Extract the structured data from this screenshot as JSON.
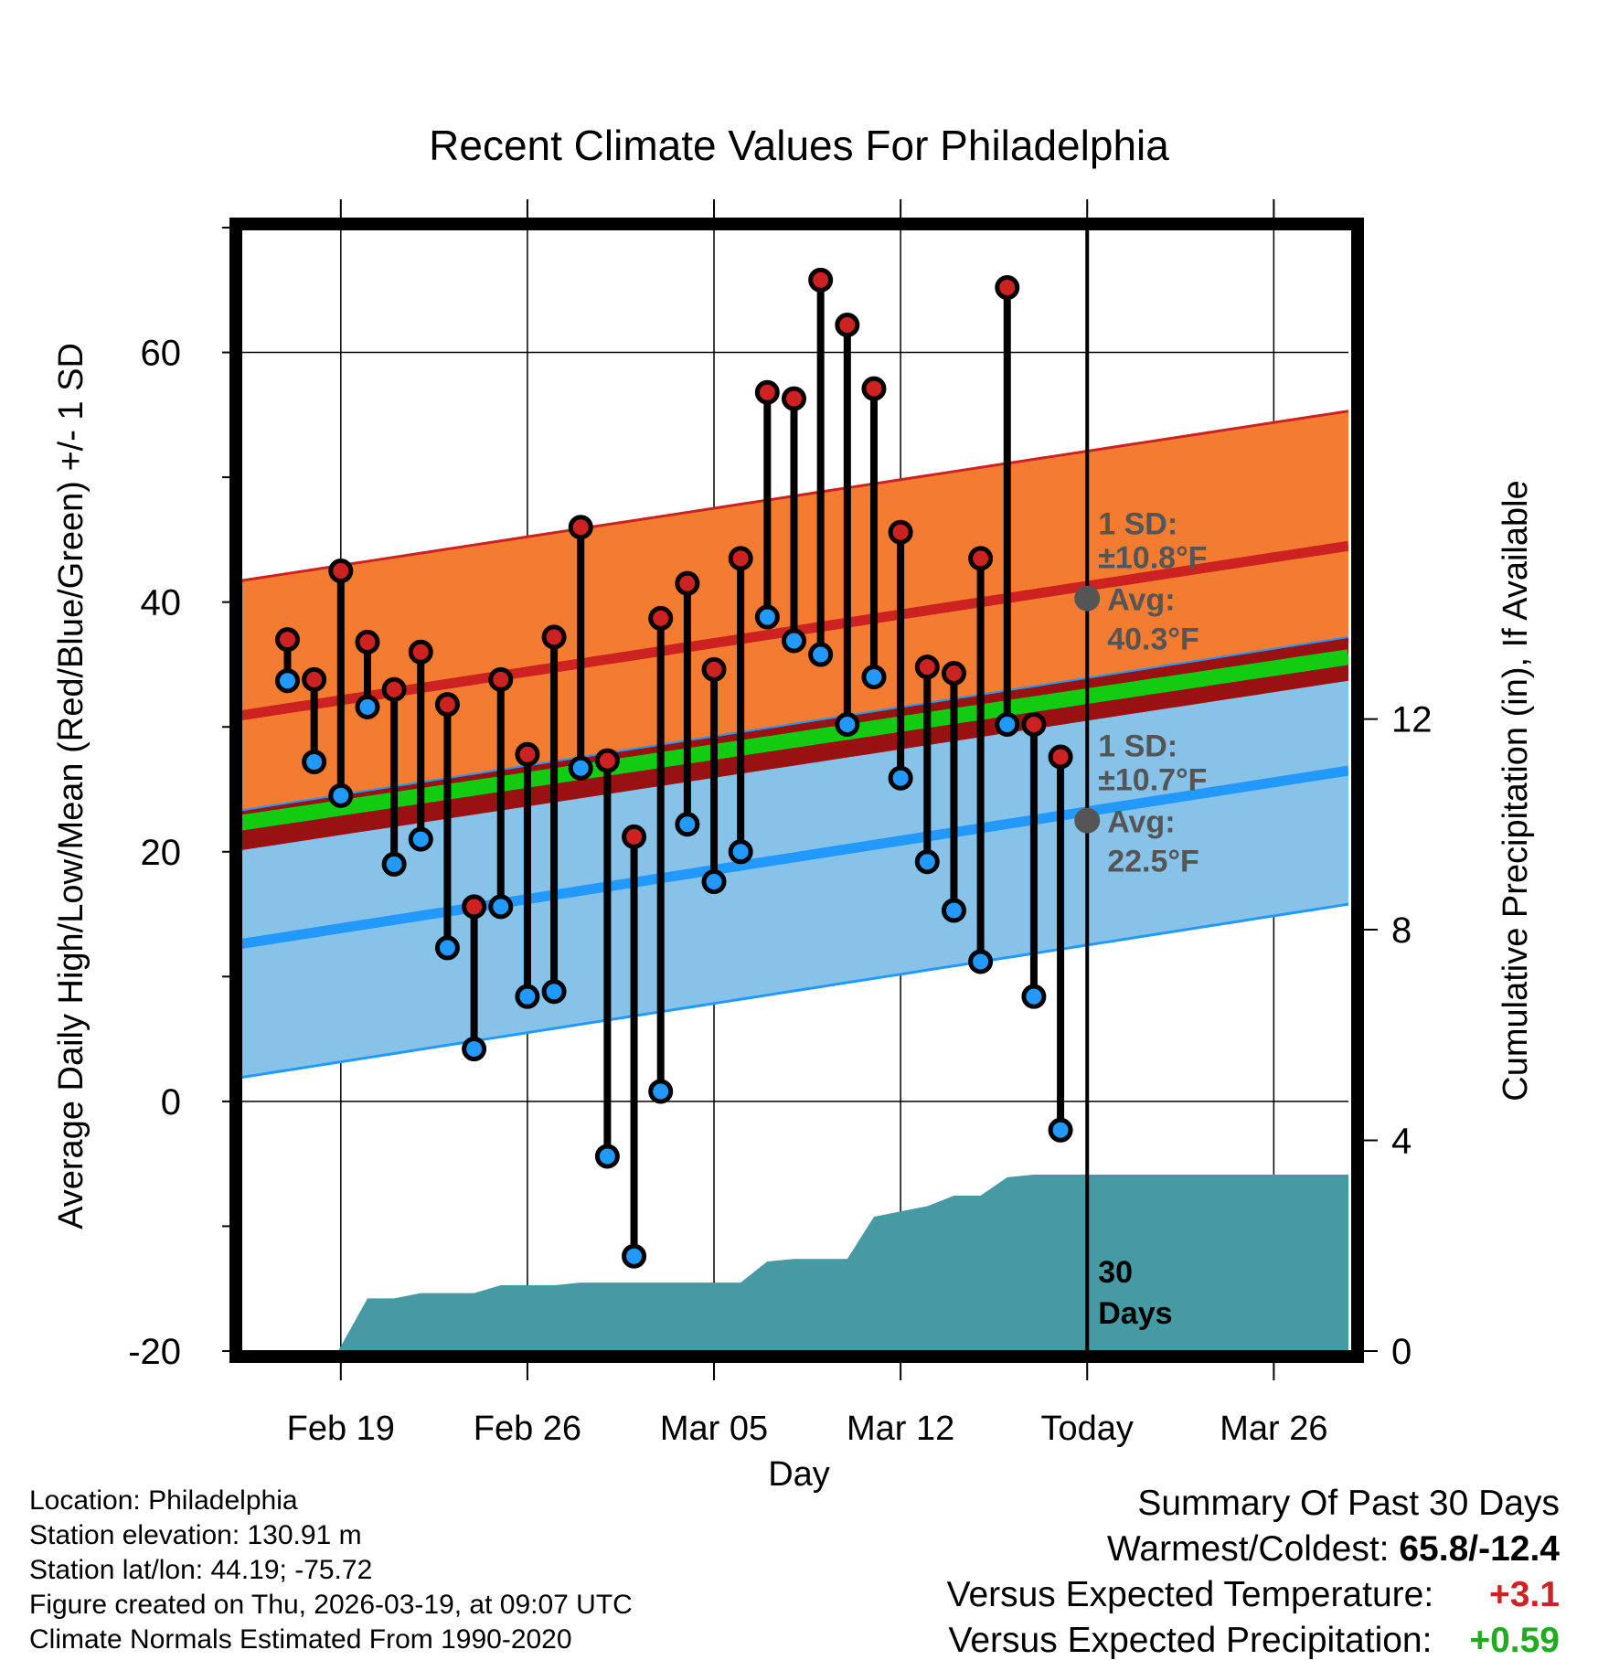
{
  "chart_data": {
    "type": "line",
    "title": "Recent Climate Values For Philadelphia",
    "xlabel": "Day",
    "ylabel": "Average Daily High/Low/Mean (Red/Blue/Green) +/- 1 SD",
    "y2label": "Cumulative Precipitation (in), If Available",
    "ylim": [
      -20,
      70
    ],
    "y2lim": [
      0,
      21.33
    ],
    "yticks": [
      -20,
      0,
      20,
      40,
      60
    ],
    "y2ticks": [
      0,
      4,
      8,
      12
    ],
    "xlim": [
      -0.8,
      40.8
    ],
    "x_tick_positions": [
      3,
      10,
      17,
      24,
      31,
      38
    ],
    "x_tick_labels": [
      "Feb 19",
      "Feb 26",
      "Mar 05",
      "Mar 12",
      "Today",
      "Mar 26"
    ],
    "grid": true,
    "today_index": 31,
    "today_label_line1": "30",
    "today_label_line2": "Days",
    "days": [
      1,
      2,
      3,
      4,
      5,
      6,
      7,
      8,
      9,
      10,
      11,
      12,
      13,
      14,
      15,
      16,
      17,
      18,
      19,
      20,
      21,
      22,
      23,
      24,
      25,
      26,
      27,
      28,
      29,
      30
    ],
    "daily_high": [
      37.0,
      33.8,
      42.5,
      36.8,
      33.0,
      36.0,
      31.8,
      15.6,
      33.8,
      27.8,
      37.2,
      46.0,
      27.3,
      21.2,
      38.7,
      41.5,
      34.6,
      43.5,
      56.8,
      56.3,
      65.8,
      62.2,
      57.1,
      45.6,
      34.8,
      34.3,
      43.5,
      65.2,
      30.2,
      27.6
    ],
    "daily_low": [
      33.7,
      27.2,
      24.5,
      31.6,
      19.0,
      21.0,
      12.3,
      4.2,
      15.6,
      8.4,
      8.8,
      26.7,
      -4.4,
      -12.4,
      0.8,
      22.2,
      17.6,
      20.0,
      38.8,
      36.9,
      35.8,
      30.2,
      34.0,
      25.9,
      19.2,
      15.3,
      11.2,
      30.2,
      8.4,
      -2.3
    ],
    "normal_high": {
      "start": 30.9,
      "end": 44.5,
      "sd": 10.8
    },
    "normal_low": {
      "start": 12.6,
      "end": 26.5,
      "sd": 10.7
    },
    "normal_mean": {
      "start": 22.3,
      "end": 35.6
    },
    "precip_cumulative": [
      {
        "day": 2.9,
        "value": 0.0
      },
      {
        "day": 4.0,
        "value": 1.0
      },
      {
        "day": 5.0,
        "value": 1.0
      },
      {
        "day": 6.0,
        "value": 1.1
      },
      {
        "day": 8.0,
        "value": 1.1
      },
      {
        "day": 9.0,
        "value": 1.25
      },
      {
        "day": 11.0,
        "value": 1.25
      },
      {
        "day": 12.0,
        "value": 1.3
      },
      {
        "day": 18.0,
        "value": 1.3
      },
      {
        "day": 19.0,
        "value": 1.7
      },
      {
        "day": 20.0,
        "value": 1.75
      },
      {
        "day": 22.0,
        "value": 1.75
      },
      {
        "day": 23.0,
        "value": 2.55
      },
      {
        "day": 24.0,
        "value": 2.65
      },
      {
        "day": 25.0,
        "value": 2.75
      },
      {
        "day": 26.0,
        "value": 2.95
      },
      {
        "day": 27.0,
        "value": 2.95
      },
      {
        "day": 28.0,
        "value": 3.3
      },
      {
        "day": 29.0,
        "value": 3.35
      },
      {
        "day": 40.8,
        "value": 3.35
      }
    ],
    "annotations": [
      {
        "line1": "1 SD:",
        "line2": "±10.8°F",
        "line3": "Avg:",
        "line4": "40.3°F",
        "value": 40.3,
        "color": "#555555"
      },
      {
        "line1": "1 SD:",
        "line2": "±10.7°F",
        "line3": "Avg:",
        "line4": "22.5°F",
        "value": 22.5,
        "color": "#555555"
      }
    ],
    "colors": {
      "high": "#cc2222",
      "low": "#2299ff",
      "high_band": "#f47c30",
      "low_band": "#87c2e8",
      "overlap_band": "#991111",
      "mean": "#11cc11",
      "precip": "#459aa3",
      "marker_edge": "#000000"
    }
  },
  "info": {
    "location": "Location: Philadelphia",
    "elevation": "Station elevation: 130.91 m",
    "latlon": "Station lat/lon: 44.19; -75.72",
    "created": "Figure created on Thu, 2026-03-19, at 09:07 UTC",
    "normals": "Climate Normals Estimated From 1990-2020"
  },
  "summary": {
    "title": "Summary Of Past 30 Days",
    "warmest_label": "Warmest/Coldest:",
    "warmest_value": "65.8/-12.4",
    "temp_label": "Versus Expected Temperature:",
    "temp_value": "+3.1",
    "precip_label": "Versus Expected Precipitation:",
    "precip_value": "+0.59"
  }
}
